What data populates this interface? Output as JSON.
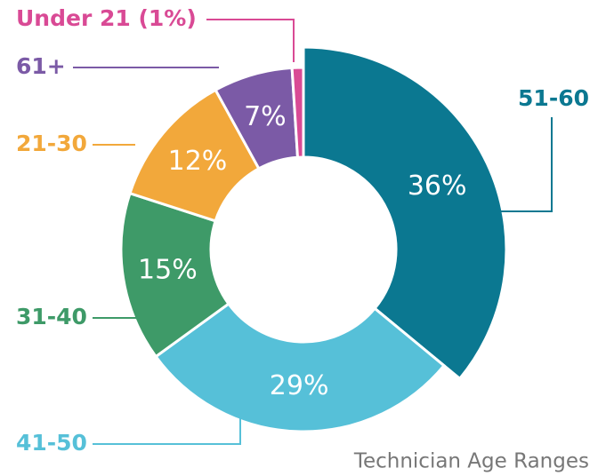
{
  "chart_data": {
    "type": "donut",
    "title": "Technician Age Ranges",
    "categories": [
      "51-60",
      "41-50",
      "31-40",
      "21-30",
      "61+",
      "Under 21 (1%)"
    ],
    "values": [
      36,
      29,
      15,
      12,
      7,
      1
    ],
    "value_labels": [
      "36%",
      "29%",
      "15%",
      "12%",
      "7%",
      null
    ],
    "colors": [
      "#0b7891",
      "#56c0d8",
      "#3e9a68",
      "#f2a83b",
      "#7b5aa6",
      "#d94a95"
    ]
  }
}
